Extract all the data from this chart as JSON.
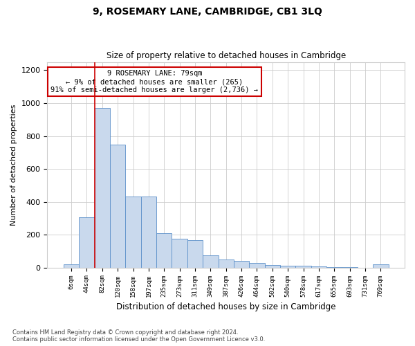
{
  "title": "9, ROSEMARY LANE, CAMBRIDGE, CB1 3LQ",
  "subtitle": "Size of property relative to detached houses in Cambridge",
  "xlabel": "Distribution of detached houses by size in Cambridge",
  "ylabel": "Number of detached properties",
  "bin_labels": [
    "6sqm",
    "44sqm",
    "82sqm",
    "120sqm",
    "158sqm",
    "197sqm",
    "235sqm",
    "273sqm",
    "311sqm",
    "349sqm",
    "387sqm",
    "426sqm",
    "464sqm",
    "502sqm",
    "540sqm",
    "578sqm",
    "617sqm",
    "655sqm",
    "693sqm",
    "731sqm",
    "769sqm"
  ],
  "bar_heights": [
    20,
    305,
    970,
    748,
    430,
    430,
    207,
    175,
    165,
    73,
    48,
    40,
    28,
    15,
    12,
    10,
    8,
    5,
    3,
    0,
    18
  ],
  "bar_color": "#c9d9ed",
  "bar_edge_color": "#5b8fc9",
  "annotation_title": "9 ROSEMARY LANE: 79sqm",
  "annotation_line1": "← 9% of detached houses are smaller (265)",
  "annotation_line2": "91% of semi-detached houses are larger (2,736) →",
  "annotation_box_color": "#ffffff",
  "annotation_box_edge_color": "#cc0000",
  "vline_color": "#cc0000",
  "vline_x": 1.5,
  "ylim": [
    0,
    1250
  ],
  "yticks": [
    0,
    200,
    400,
    600,
    800,
    1000,
    1200
  ],
  "footer1": "Contains HM Land Registry data © Crown copyright and database right 2024.",
  "footer2": "Contains public sector information licensed under the Open Government Licence v3.0."
}
